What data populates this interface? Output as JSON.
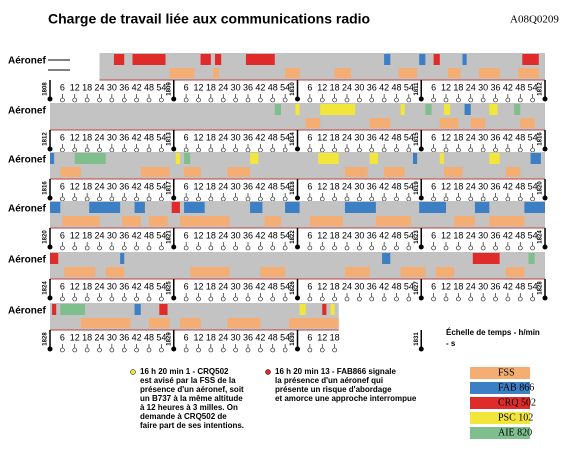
{
  "header": {
    "title": "Charge de travail liée aux communications radio",
    "code": "A08Q0209"
  },
  "row_label": "Aéronef",
  "time_range": [
    0,
    240
  ],
  "second_ticks": [
    6,
    12,
    18,
    24,
    30,
    36,
    42,
    48,
    54
  ],
  "legend": [
    {
      "label": "FSS",
      "color": "#f4ad72"
    },
    {
      "label": "FAB 866",
      "color": "#3c7fc4"
    },
    {
      "label": "CRQ 502",
      "color": "#e02b2b"
    },
    {
      "label": "PSC 102",
      "color": "#f2e63a"
    },
    {
      "label": "AIE 820",
      "color": "#7fbf8e"
    }
  ],
  "rows": [
    {
      "minutes": [
        "1808",
        "1809",
        "1810",
        "1811",
        "1812"
      ],
      "span": [
        24,
        240
      ],
      "blocks": [
        [
          31,
          36,
          2
        ],
        [
          40,
          56,
          2
        ],
        [
          73,
          78,
          2
        ],
        [
          80,
          83,
          2
        ],
        [
          95,
          109,
          2
        ],
        [
          162,
          165,
          1
        ],
        [
          179,
          182,
          1
        ],
        [
          186,
          189,
          2
        ],
        [
          200,
          202,
          1
        ],
        [
          229,
          237,
          2
        ]
      ],
      "fss": [
        [
          58,
          70
        ],
        [
          79,
          82
        ],
        [
          114,
          121
        ],
        [
          138,
          146
        ],
        [
          169,
          178
        ],
        [
          193,
          199
        ],
        [
          208,
          218
        ],
        [
          227,
          237
        ]
      ]
    },
    {
      "minutes": [
        "1812",
        "1813",
        "1814",
        "1815",
        "1816"
      ],
      "span": [
        0,
        240
      ],
      "blocks": [
        [
          109,
          112,
          4
        ],
        [
          119,
          121,
          3
        ],
        [
          131,
          148,
          3
        ],
        [
          170,
          172,
          3
        ],
        [
          182,
          185,
          4
        ],
        [
          191,
          194,
          3
        ],
        [
          201,
          204,
          1
        ],
        [
          213,
          217,
          3
        ],
        [
          225,
          228,
          4
        ]
      ],
      "fss": [
        [
          124,
          131
        ],
        [
          155,
          165
        ],
        [
          189,
          198
        ],
        [
          204,
          211
        ],
        [
          228,
          235
        ]
      ]
    },
    {
      "minutes": [
        "1816",
        "1817",
        "1818",
        "1819",
        "1820"
      ],
      "span": [
        0,
        240
      ],
      "blocks": [
        [
          0,
          2,
          1
        ],
        [
          12,
          27,
          4
        ],
        [
          61,
          63,
          3
        ],
        [
          65,
          68,
          4
        ],
        [
          97,
          101,
          3
        ],
        [
          130,
          140,
          3
        ],
        [
          155,
          159,
          3
        ],
        [
          176,
          178,
          1
        ],
        [
          189,
          191,
          3
        ],
        [
          213,
          218,
          3
        ],
        [
          233,
          238,
          1
        ]
      ],
      "fss": [
        [
          5,
          15
        ],
        [
          44,
          58
        ],
        [
          65,
          73
        ],
        [
          86,
          97
        ],
        [
          143,
          154
        ],
        [
          162,
          172
        ],
        [
          191,
          200
        ],
        [
          221,
          228
        ]
      ]
    },
    {
      "minutes": [
        "1820",
        "1821",
        "1822",
        "1823",
        "1824"
      ],
      "span": [
        0,
        240
      ],
      "blocks": [
        [
          0,
          5,
          1
        ],
        [
          19,
          34,
          1
        ],
        [
          41,
          46,
          1
        ],
        [
          59,
          63,
          2
        ],
        [
          65,
          75,
          1
        ],
        [
          97,
          103,
          1
        ],
        [
          114,
          121,
          1
        ],
        [
          143,
          158,
          1
        ],
        [
          179,
          192,
          1
        ],
        [
          206,
          213,
          1
        ],
        [
          230,
          240,
          1
        ]
      ],
      "fss": [
        [
          6,
          24
        ],
        [
          35,
          44
        ],
        [
          48,
          57
        ],
        [
          63,
          87
        ],
        [
          104,
          112
        ],
        [
          126,
          142
        ],
        [
          158,
          175
        ],
        [
          196,
          206
        ],
        [
          213,
          230
        ]
      ]
    },
    {
      "minutes": [
        "1824",
        "1825",
        "1826",
        "1827",
        "1828"
      ],
      "span": [
        0,
        240
      ],
      "blocks": [
        [
          0,
          4,
          2
        ],
        [
          34,
          36,
          1
        ],
        [
          161,
          165,
          1
        ],
        [
          205,
          218,
          2
        ],
        [
          232,
          235,
          4
        ]
      ],
      "fss": [
        [
          7,
          22
        ],
        [
          27,
          36
        ],
        [
          68,
          87
        ],
        [
          102,
          114
        ],
        [
          143,
          155
        ],
        [
          170,
          182
        ],
        [
          187,
          196
        ],
        [
          221,
          230
        ]
      ]
    },
    {
      "minutes": [
        "1828",
        "1829",
        "1830",
        "1831"
      ],
      "span": [
        0,
        140
      ],
      "blocks": [
        [
          1,
          3,
          2
        ],
        [
          5,
          17,
          4
        ],
        [
          41,
          44,
          1
        ],
        [
          53,
          57,
          2
        ],
        [
          121,
          124,
          3
        ],
        [
          132,
          134,
          2
        ],
        [
          136,
          138,
          3
        ]
      ],
      "fss": [
        [
          15,
          39
        ],
        [
          48,
          58
        ],
        [
          63,
          73
        ],
        [
          86,
          102
        ],
        [
          116,
          126
        ],
        [
          126,
          140
        ]
      ]
    }
  ],
  "notes": [
    {
      "head": "16 h 20 min 1 - CRQ502",
      "text": [
        "est avisé par la FSS de la",
        "présence d'un aéronef, soit",
        "un B737 à la même altitude",
        "à 12 heures à 3 milles. On",
        "demande à CRQ502 de",
        "faire part de ses intentions."
      ]
    },
    {
      "head": "16 h 20 min 13 - FAB866 signale",
      "text": [
        "la présence d'un aéronef qui",
        "présente un risque d'abordage",
        "et amorce une approche interrompue"
      ]
    }
  ],
  "scale_label": [
    "Échelle de temps - h/min",
    "- s"
  ]
}
